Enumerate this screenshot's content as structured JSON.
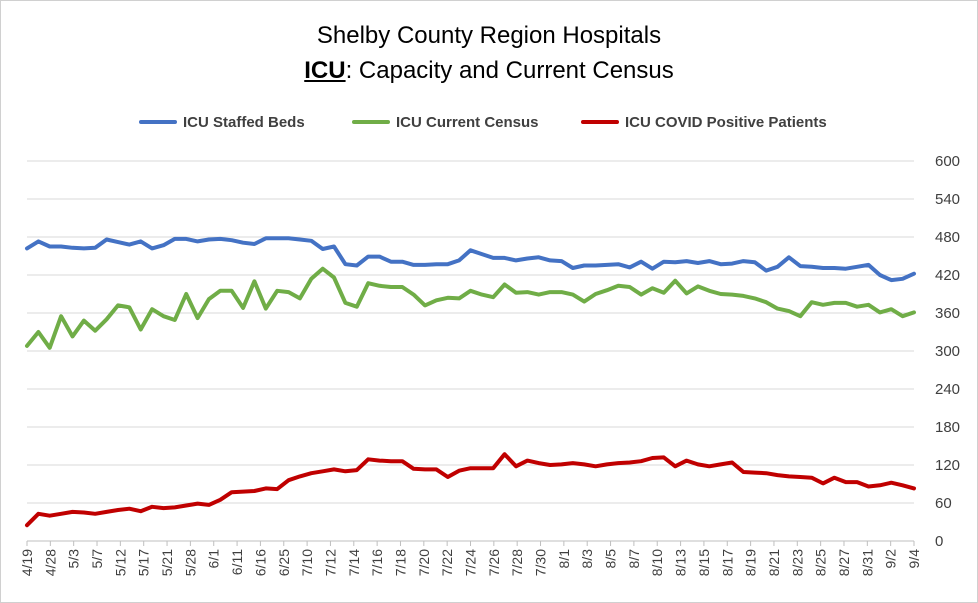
{
  "title": {
    "line1": "Shelby County Region Hospitals",
    "line2_bold_underlined": "ICU",
    "line2_rest": ": Capacity and Current Census"
  },
  "colors": {
    "icu_staffed_beds": "#4472C4",
    "icu_current_census": "#70AD47",
    "icu_covid_positive": "#C00000",
    "gridline": "#d9d9d9",
    "axis_text": "#404040"
  },
  "chart_data": {
    "type": "line",
    "title": "Shelby County Region Hospitals ICU: Capacity and Current Census",
    "xlabel": "",
    "ylabel": "",
    "ylim": [
      0,
      600
    ],
    "y_ticks": [
      0,
      60,
      120,
      180,
      240,
      300,
      360,
      420,
      480,
      540,
      600
    ],
    "y_axis_side": "right",
    "grid": true,
    "legend_position": "top",
    "x_tick_labels": [
      "4/19",
      "4/28",
      "5/3",
      "5/7",
      "5/12",
      "5/17",
      "5/21",
      "5/28",
      "6/1",
      "6/11",
      "6/16",
      "6/25",
      "7/10",
      "7/12",
      "7/14",
      "7/16",
      "7/18",
      "7/20",
      "7/22",
      "7/24",
      "7/26",
      "7/28",
      "7/30",
      "8/1",
      "8/3",
      "8/5",
      "8/7",
      "8/10",
      "8/13",
      "8/15",
      "8/17",
      "8/19",
      "8/21",
      "8/23",
      "8/25",
      "8/27",
      "8/31",
      "9/2",
      "9/4"
    ],
    "series": [
      {
        "name": "ICU Staffed Beds",
        "color": "#4472C4",
        "values": [
          462,
          473,
          465,
          465,
          463,
          462,
          463,
          476,
          472,
          468,
          473,
          462,
          467,
          477,
          477,
          473,
          476,
          477,
          475,
          471,
          469,
          478,
          478,
          478,
          476,
          474,
          461,
          465,
          437,
          435,
          449,
          449,
          441,
          441,
          436,
          436,
          437,
          437,
          443,
          459,
          453,
          447,
          447,
          443,
          446,
          448,
          443,
          442,
          431,
          435,
          435,
          436,
          437,
          432,
          441,
          430,
          441,
          440,
          442,
          439,
          442,
          437,
          438,
          442,
          440,
          427,
          433,
          448,
          434,
          433,
          431,
          431,
          430,
          433,
          436,
          420,
          412,
          414,
          422
        ]
      },
      {
        "name": "ICU Current Census",
        "color": "#70AD47",
        "values": [
          308,
          330,
          305,
          355,
          323,
          348,
          332,
          350,
          372,
          369,
          334,
          366,
          355,
          349,
          390,
          352,
          382,
          395,
          395,
          368,
          410,
          367,
          395,
          393,
          383,
          414,
          430,
          416,
          376,
          370,
          407,
          403,
          401,
          401,
          389,
          372,
          380,
          384,
          383,
          395,
          389,
          385,
          405,
          392,
          393,
          389,
          393,
          393,
          389,
          378,
          390,
          396,
          403,
          401,
          389,
          399,
          392,
          411,
          391,
          402,
          395,
          390,
          389,
          387,
          383,
          377,
          367,
          363,
          355,
          377,
          373,
          376,
          376,
          370,
          373,
          361,
          366,
          355,
          361
        ]
      },
      {
        "name": "ICU COVID Positive Patients",
        "color": "#C00000",
        "values": [
          25,
          43,
          40,
          43,
          46,
          45,
          43,
          46,
          49,
          51,
          47,
          54,
          52,
          53,
          56,
          59,
          57,
          65,
          77,
          78,
          79,
          83,
          82,
          96,
          102,
          107,
          110,
          113,
          110,
          112,
          129,
          127,
          126,
          126,
          114,
          113,
          113,
          101,
          111,
          115,
          115,
          115,
          137,
          118,
          127,
          123,
          120,
          121,
          123,
          121,
          118,
          121,
          123,
          124,
          126,
          131,
          132,
          118,
          127,
          121,
          118,
          121,
          124,
          109,
          108,
          107,
          104,
          102,
          101,
          100,
          91,
          100,
          93,
          93,
          86,
          88,
          92,
          88,
          83
        ]
      }
    ]
  }
}
